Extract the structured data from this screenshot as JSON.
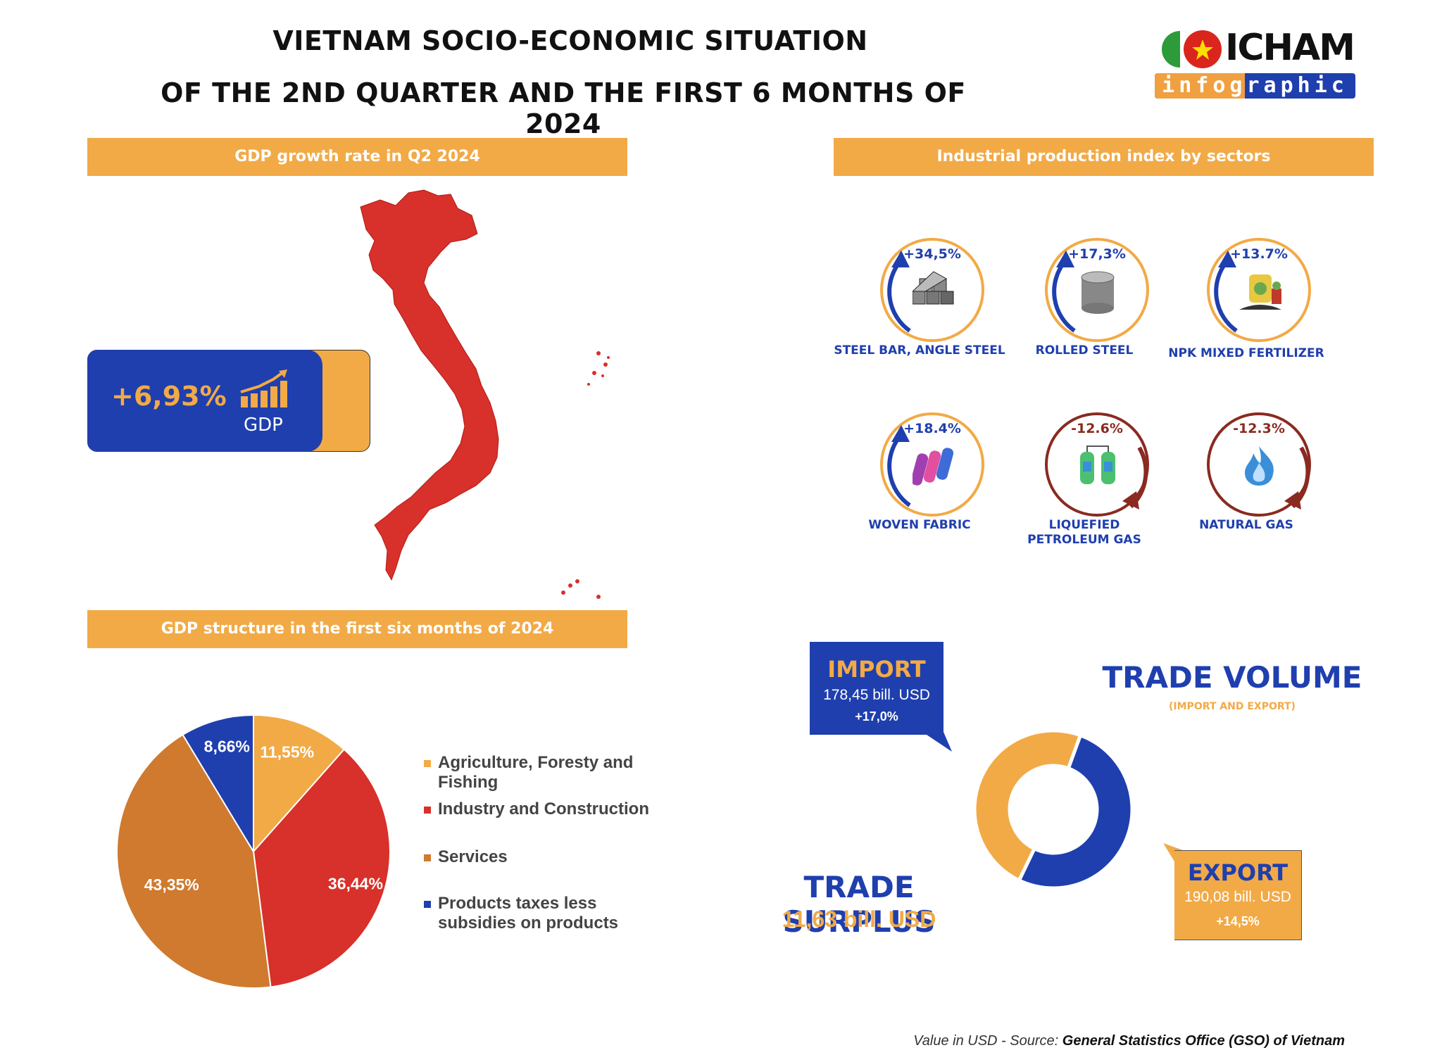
{
  "header": {
    "title_line1": "VIETNAM SOCIO-ECONOMIC SITUATION",
    "title_line2": "OF THE 2ND QUARTER AND THE FIRST 6 MONTHS OF 2024"
  },
  "logo": {
    "name": "ICHAM",
    "tagline": "infographic"
  },
  "gdp": {
    "section_title": "GDP growth rate in Q2 2024",
    "value": "+6,93%",
    "label": "GDP"
  },
  "ipi": {
    "section_title": "Industrial production index by sectors",
    "items": [
      {
        "label": "STEEL BAR, ANGLE STEEL",
        "change": "+34,5%",
        "direction": "up",
        "icon": "steel-bars-icon"
      },
      {
        "label": "ROLLED STEEL",
        "change": "+17,3%",
        "direction": "up",
        "icon": "steel-coil-icon"
      },
      {
        "label": "NPK MIXED FERTILIZER",
        "change": "+13.7%",
        "direction": "up",
        "icon": "fertilizer-icon"
      },
      {
        "label": "WOVEN FABRIC",
        "change": "+18.4%",
        "direction": "up",
        "icon": "fabric-rolls-icon"
      },
      {
        "label_line1": "LIQUEFIED",
        "label_line2": "PETROLEUM GAS",
        "change": "-12.6%",
        "direction": "down",
        "icon": "gas-cylinders-icon"
      },
      {
        "label": "NATURAL GAS",
        "change": "-12.3%",
        "direction": "down",
        "icon": "flame-icon"
      }
    ]
  },
  "structure": {
    "section_title": "GDP structure in the first six months of 2024"
  },
  "chart_data": {
    "type": "pie",
    "title": "GDP structure in the first six months of 2024",
    "slices": [
      {
        "label": "Agriculture, Foresty and Fishing",
        "value": 11.55,
        "display": "11,55%",
        "color": "#f2aa46"
      },
      {
        "label": "Industry and Construction",
        "value": 36.44,
        "display": "36,44%",
        "color": "#d8302a"
      },
      {
        "label": "Services",
        "value": 43.35,
        "display": "43,35%",
        "color": "#cf7a2e"
      },
      {
        "label": "Products taxes less subsidies on products",
        "value": 8.66,
        "display": "8,66%",
        "color": "#1f3fae"
      }
    ],
    "legend": {
      "items": [
        {
          "line1": "Agriculture, Foresty and",
          "line2": "Fishing"
        },
        {
          "line1": "Industry and Construction"
        },
        {
          "line1": "Services"
        },
        {
          "line1": "Products taxes less",
          "line2": "subsidies on products"
        }
      ],
      "placement": "right"
    }
  },
  "trade": {
    "volume_title": "TRADE VOLUME",
    "volume_subtitle": "(IMPORT AND EXPORT)",
    "import": {
      "title": "IMPORT",
      "value": "178,45 bill. USD",
      "change": "+17,0%",
      "amount": 178.45
    },
    "export": {
      "title": "EXPORT",
      "value": "190,08 bill. USD",
      "change": "+14,5%",
      "amount": 190.08
    },
    "surplus_title": "TRADE SURPLUS",
    "surplus_value": "11,63 bill. USD"
  },
  "colors": {
    "orange": "#f2aa46",
    "blue": "#1f3fae",
    "red": "#d8302a",
    "brown": "#cf7a2e",
    "dark_red": "#8a2a20"
  },
  "footer": {
    "source_prefix": "Value in USD - Source: ",
    "source_name": "General Statistics Office (GSO) of Vietnam"
  }
}
